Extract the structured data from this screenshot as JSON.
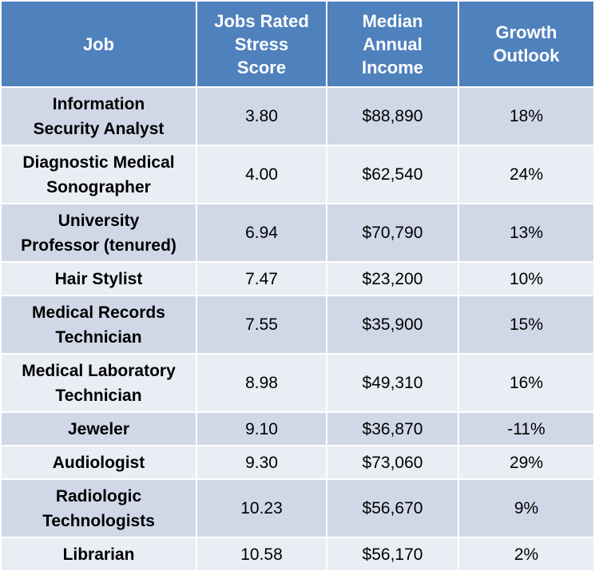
{
  "table": {
    "headers": [
      "Job",
      "Jobs Rated\nStress\nScore",
      "Median\nAnnual\nIncome",
      "Growth\nOutlook"
    ],
    "rows": [
      {
        "job": "Information\nSecurity Analyst",
        "stress": "3.80",
        "income": "$88,890",
        "growth": "18%"
      },
      {
        "job": "Diagnostic Medical\nSonographer",
        "stress": "4.00",
        "income": "$62,540",
        "growth": "24%"
      },
      {
        "job": "University\nProfessor (tenured)",
        "stress": "6.94",
        "income": "$70,790",
        "growth": "13%"
      },
      {
        "job": "Hair Stylist",
        "stress": "7.47",
        "income": "$23,200",
        "growth": "10%"
      },
      {
        "job": "Medical Records\nTechnician",
        "stress": "7.55",
        "income": "$35,900",
        "growth": "15%"
      },
      {
        "job": "Medical Laboratory\nTechnician",
        "stress": "8.98",
        "income": "$49,310",
        "growth": "16%"
      },
      {
        "job": "Jeweler",
        "stress": "9.10",
        "income": "$36,870",
        "growth": "-11%"
      },
      {
        "job": "Audiologist",
        "stress": "9.30",
        "income": "$73,060",
        "growth": "29%"
      },
      {
        "job": "Radiologic\nTechnologists",
        "stress": "10.23",
        "income": "$56,670",
        "growth": "9%"
      },
      {
        "job": "Librarian",
        "stress": "10.58",
        "income": "$56,170",
        "growth": "2%"
      }
    ]
  },
  "colors": {
    "header_bg": "#4f81bd",
    "row_odd_bg": "#d0d8e8",
    "row_even_bg": "#e9edf4"
  }
}
